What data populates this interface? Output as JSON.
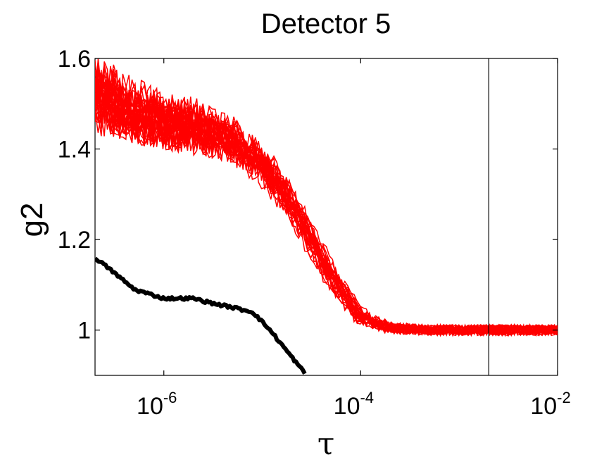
{
  "chart_data": {
    "type": "line",
    "title": "Detector 5",
    "xlabel": "τ",
    "ylabel": "g2",
    "xscale": "log",
    "xlim": [
      2e-07,
      0.01
    ],
    "ylim": [
      0.9,
      1.6
    ],
    "grid": false,
    "legend": "none",
    "colors": {
      "red_series": "#ff0000",
      "black_series": "#000000",
      "axes": "#000000",
      "background": "#ffffff"
    },
    "x_ticks": [
      {
        "value": 1e-06,
        "base": "10",
        "exp": "-6"
      },
      {
        "value": 0.0001,
        "base": "10",
        "exp": "-4"
      },
      {
        "value": 0.01,
        "base": "10",
        "exp": "-2"
      }
    ],
    "y_ticks": [
      {
        "value": 1.0,
        "label": "1"
      },
      {
        "value": 1.2,
        "label": "1.2"
      },
      {
        "value": 1.4,
        "label": "1.4"
      },
      {
        "value": 1.6,
        "label": "1.6"
      }
    ],
    "vertical_line_x": 0.002,
    "series": [
      {
        "color": "red",
        "count": 30,
        "x": [
          2e-07,
          5e-07,
          1e-06,
          2e-06,
          5e-06,
          1e-05,
          2e-05,
          5e-05,
          0.0001,
          0.0002,
          0.0005,
          0.001,
          0.01
        ],
        "values": [
          1.52,
          1.48,
          1.46,
          1.45,
          1.42,
          1.37,
          1.28,
          1.12,
          1.03,
          1.005,
          1.0,
          1.0,
          1.0
        ]
      },
      {
        "color": "black",
        "x": [
          2e-07,
          3e-07,
          5e-07,
          1e-06,
          2e-06,
          3e-06,
          5e-06,
          8e-06,
          1.2e-05,
          2e-05,
          2.7e-05
        ],
        "values": [
          1.16,
          1.13,
          1.09,
          1.07,
          1.07,
          1.06,
          1.05,
          1.04,
          1.0,
          0.94,
          0.905
        ]
      }
    ]
  }
}
